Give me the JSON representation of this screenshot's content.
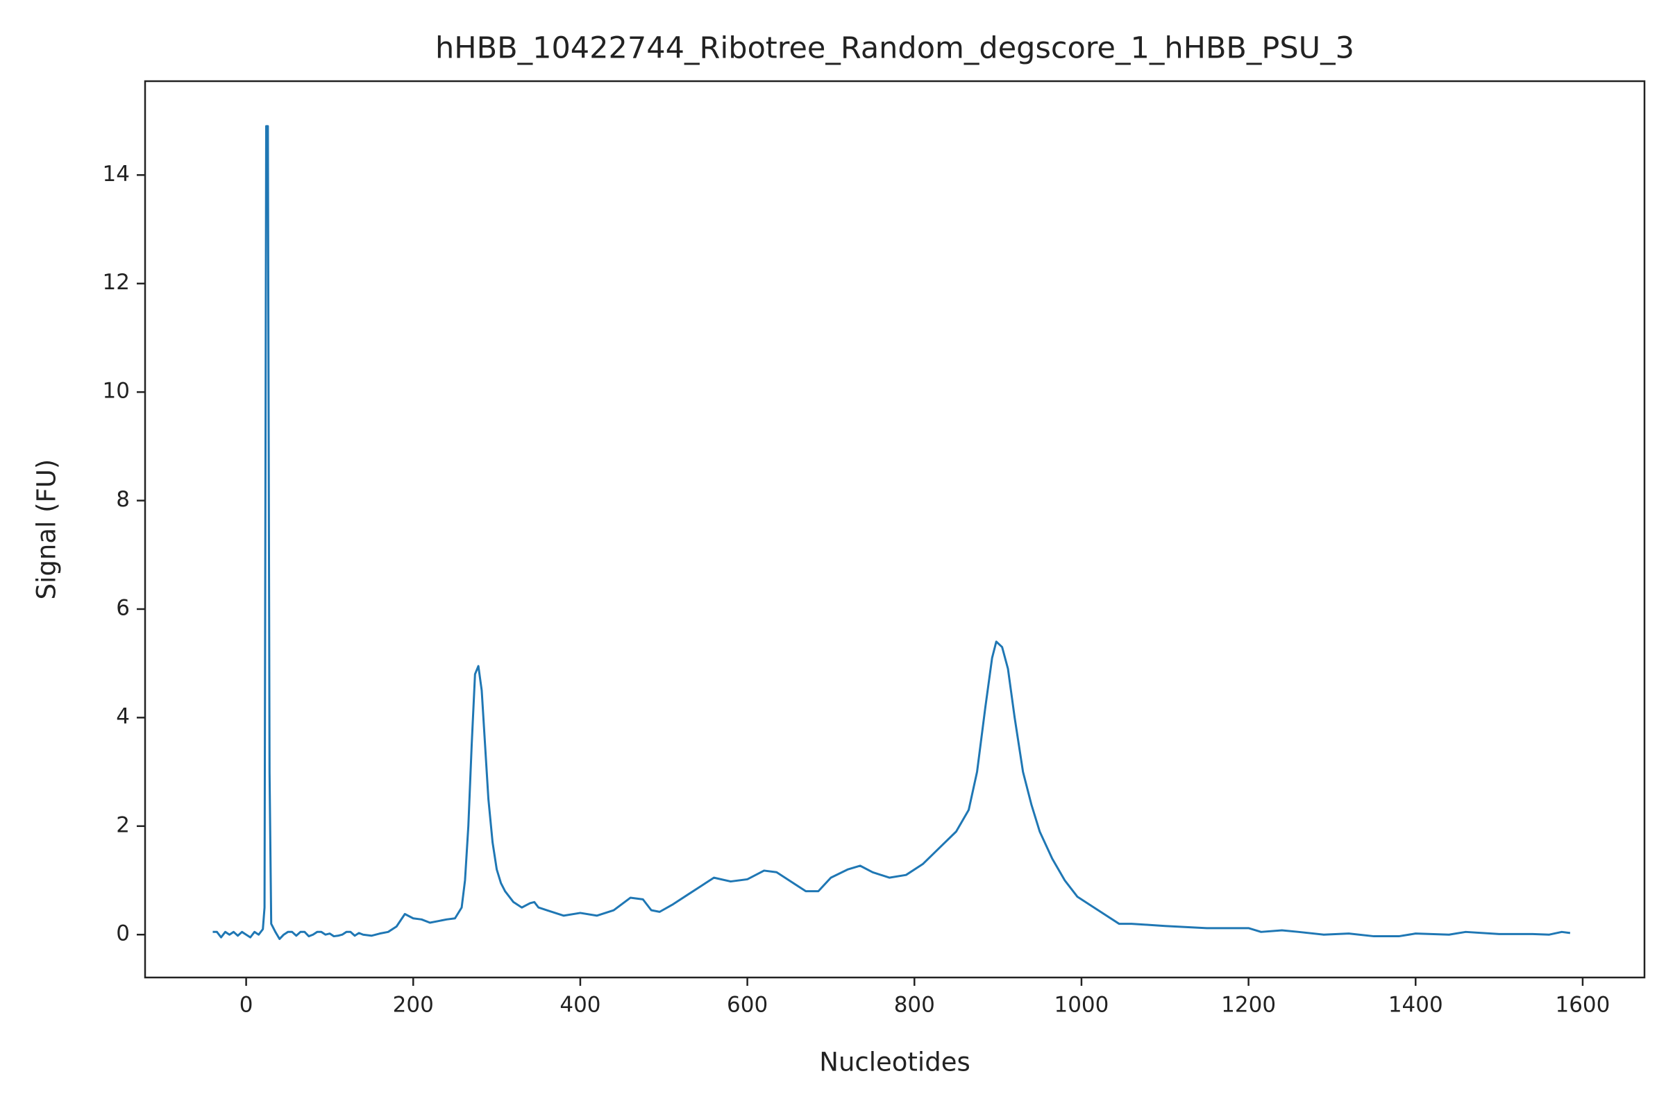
{
  "chart_data": {
    "type": "line",
    "title": "hHBB_10422744_Ribotree_Random_degscore_1_hHBB_PSU_3",
    "xlabel": "Nucleotides",
    "ylabel": "Signal (FU)",
    "color": "#1f77b4",
    "x": [
      -40,
      -35,
      -30,
      -25,
      -20,
      -15,
      -10,
      -5,
      0,
      5,
      10,
      15,
      20,
      22,
      24,
      26,
      28,
      30,
      35,
      40,
      45,
      50,
      55,
      60,
      65,
      70,
      75,
      80,
      85,
      90,
      95,
      100,
      105,
      110,
      115,
      120,
      125,
      130,
      135,
      140,
      150,
      160,
      170,
      180,
      190,
      200,
      210,
      220,
      230,
      240,
      250,
      258,
      262,
      266,
      270,
      274,
      278,
      282,
      286,
      290,
      295,
      300,
      305,
      310,
      320,
      330,
      340,
      345,
      350,
      360,
      370,
      380,
      400,
      420,
      440,
      460,
      475,
      485,
      495,
      510,
      530,
      545,
      560,
      580,
      600,
      620,
      635,
      650,
      670,
      685,
      700,
      720,
      735,
      750,
      770,
      790,
      810,
      830,
      850,
      865,
      875,
      885,
      893,
      898,
      905,
      912,
      920,
      930,
      940,
      950,
      965,
      980,
      995,
      1010,
      1030,
      1045,
      1060,
      1080,
      1100,
      1150,
      1200,
      1215,
      1240,
      1260,
      1290,
      1320,
      1350,
      1380,
      1400,
      1440,
      1460,
      1500,
      1540,
      1560,
      1575,
      1585
    ],
    "values": [
      0.05,
      0.05,
      -0.05,
      0.05,
      0,
      0.05,
      -0.02,
      0.05,
      0,
      -0.05,
      0.05,
      0,
      0.1,
      0.5,
      14.9,
      14.9,
      3,
      0.2,
      0.05,
      -0.08,
      0,
      0.05,
      0.05,
      -0.02,
      0.05,
      0.05,
      -0.03,
      0,
      0.05,
      0.05,
      0,
      0.02,
      -0.03,
      -0.02,
      0,
      0.05,
      0.05,
      -0.02,
      0.03,
      0,
      -0.02,
      0.02,
      0.05,
      0.15,
      0.38,
      0.3,
      0.28,
      0.22,
      0.25,
      0.28,
      0.3,
      0.5,
      1.0,
      2.0,
      3.5,
      4.8,
      4.95,
      4.5,
      3.5,
      2.5,
      1.7,
      1.2,
      0.95,
      0.8,
      0.6,
      0.5,
      0.58,
      0.6,
      0.5,
      0.45,
      0.4,
      0.35,
      0.4,
      0.35,
      0.45,
      0.68,
      0.65,
      0.45,
      0.42,
      0.55,
      0.75,
      0.9,
      1.05,
      0.98,
      1.02,
      1.18,
      1.15,
      1.0,
      0.8,
      0.8,
      1.05,
      1.2,
      1.27,
      1.15,
      1.05,
      1.1,
      1.3,
      1.6,
      1.9,
      2.3,
      3.0,
      4.2,
      5.1,
      5.4,
      5.3,
      4.9,
      4.0,
      3.0,
      2.4,
      1.9,
      1.4,
      1.0,
      0.7,
      0.55,
      0.35,
      0.2,
      0.2,
      0.18,
      0.16,
      0.12,
      0.12,
      0.05,
      0.08,
      0.05,
      0,
      0.02,
      -0.03,
      -0.03,
      0.02,
      0,
      0.05,
      0.01,
      0.01,
      0,
      0.05,
      0.03
    ],
    "xlim": [
      -121,
      1674
    ],
    "ylim": [
      -0.79,
      15.73
    ],
    "xticks": [
      0,
      200,
      400,
      600,
      800,
      1000,
      1200,
      1400,
      1600
    ],
    "yticks": [
      0,
      2,
      4,
      6,
      8,
      10,
      12,
      14
    ]
  }
}
